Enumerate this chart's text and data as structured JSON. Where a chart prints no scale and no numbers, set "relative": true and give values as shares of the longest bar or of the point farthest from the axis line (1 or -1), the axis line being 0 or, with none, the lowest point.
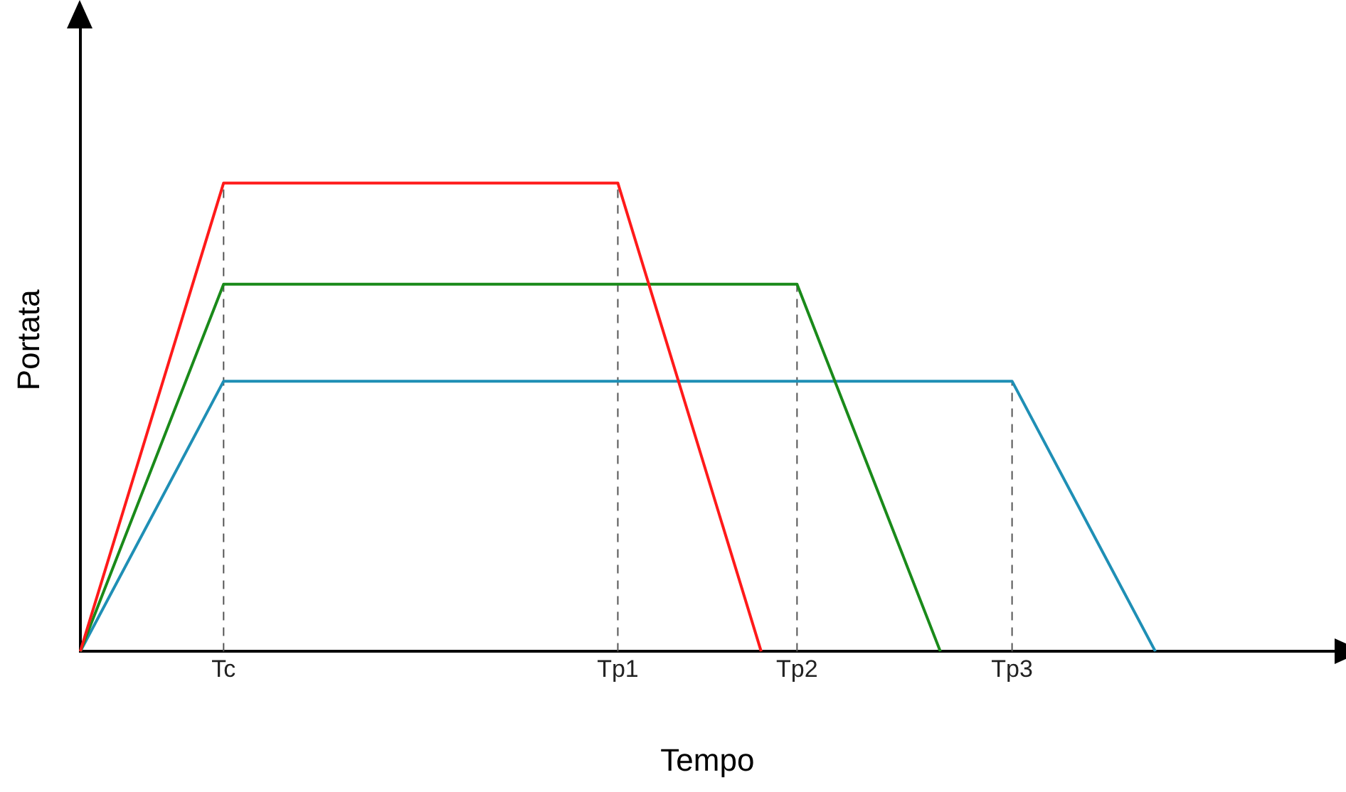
{
  "chart_data": {
    "type": "line",
    "xlabel": "Tempo",
    "ylabel": "Portata",
    "relative": true,
    "grid": false,
    "legend": false,
    "tick_labels": "x",
    "marker": "none",
    "line_style": "solid",
    "categories": [
      null,
      null,
      null,
      null,
      "Tc",
      null,
      null,
      null,
      null,
      null,
      null,
      null,
      null,
      null,
      null,
      "Tp1",
      null,
      null,
      null,
      null,
      "Tp2",
      null,
      null,
      null,
      null,
      null,
      "Tp3",
      null,
      null,
      null,
      null,
      null,
      null,
      null,
      null,
      null
    ],
    "ref_lines": [
      {
        "axis": "x",
        "value": "Tc",
        "color": "#555555",
        "line_style": "dashed"
      },
      {
        "axis": "x",
        "value": "Tp1",
        "color": "#555555",
        "line_style": "dashed"
      },
      {
        "axis": "x",
        "value": "Tp2",
        "color": "#555555",
        "line_style": "dashed"
      },
      {
        "axis": "x",
        "value": "Tp3",
        "color": "#555555",
        "line_style": "dashed"
      }
    ],
    "series": [
      {
        "color": "#ff1a1a",
        "values": [
          0,
          null,
          null,
          null,
          1,
          null,
          null,
          null,
          null,
          null,
          null,
          null,
          null,
          null,
          null,
          1,
          null,
          null,
          null,
          0,
          null,
          null,
          null,
          null,
          null,
          null,
          null,
          null,
          null,
          null,
          null,
          null,
          null,
          null,
          null,
          null
        ]
      },
      {
        "color": "#1a8a1a",
        "values": [
          0,
          null,
          null,
          null,
          0.784,
          null,
          null,
          null,
          null,
          null,
          null,
          null,
          null,
          null,
          null,
          null,
          null,
          null,
          null,
          null,
          0.784,
          null,
          null,
          null,
          0,
          null,
          null,
          null,
          null,
          null,
          null,
          null,
          null,
          null,
          null,
          null
        ]
      },
      {
        "color": "#1f8fb5",
        "values": [
          0,
          null,
          null,
          null,
          0.577,
          null,
          null,
          null,
          null,
          null,
          null,
          null,
          null,
          null,
          null,
          null,
          null,
          null,
          null,
          null,
          null,
          null,
          null,
          null,
          null,
          null,
          0.577,
          null,
          null,
          null,
          0,
          null,
          null,
          null,
          null,
          null
        ]
      }
    ]
  }
}
